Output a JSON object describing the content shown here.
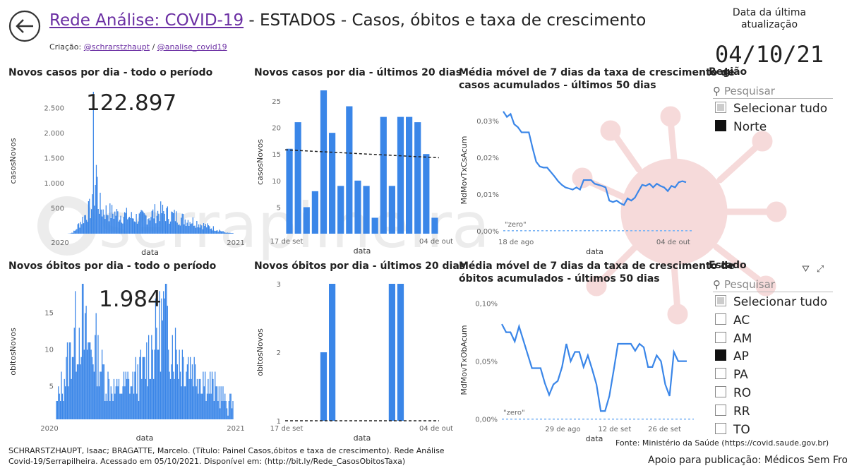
{
  "header": {
    "title_link": "Rede Análise: COVID-19",
    "title_rest": " - ESTADOS - Casos, óbitos e taxa de crescimento",
    "credit_prefix": "Criação: ",
    "credit_link1": "@schrarstzhaupt",
    "credit_sep": " / ",
    "credit_link2": "@analise_covid19",
    "update_label": "Data da última atualização",
    "update_date": "04/10/21"
  },
  "watermark": "serrapilheira",
  "panels": {
    "cases_all": {
      "title": "Novos casos por dia - todo o período",
      "big_number": "122.897"
    },
    "cases_20": {
      "title": "Novos casos por dia - últimos 20 dias"
    },
    "cases_growth": {
      "title_line1": "Média móvel de 7 dias da taxa de crescimento de",
      "title_line2": "casos acumulados - últimos 50 dias"
    },
    "deaths_all": {
      "title": "Novos óbitos por dia - todo o período",
      "big_number": "1.984"
    },
    "deaths_20": {
      "title": "Novos óbitos por dia - últimos 20 dias"
    },
    "deaths_growth": {
      "title_line1": "Média móvel de 7 dias da taxa de crescimento de",
      "title_line2": "óbitos acumulados - últimos 50 dias"
    }
  },
  "chart_data": [
    {
      "id": "cases_all",
      "type": "bar",
      "color": "#3a86e8",
      "xlabel": "data",
      "ylabel": "casosNovos",
      "xticks": [
        "2020",
        "2021"
      ],
      "yticks": [
        500,
        1000,
        1500,
        2000,
        2500
      ],
      "yticks_labels": [
        "500",
        "1.000",
        "1.500",
        "2.000",
        "2.500"
      ],
      "ylim": [
        0,
        2900
      ],
      "envelope": [
        [
          0,
          0
        ],
        [
          4,
          10
        ],
        [
          8,
          60
        ],
        [
          12,
          200
        ],
        [
          16,
          320
        ],
        [
          20,
          450
        ],
        [
          24,
          550
        ],
        [
          26,
          600
        ],
        [
          27,
          2830
        ],
        [
          28,
          900
        ],
        [
          30,
          1450
        ],
        [
          32,
          700
        ],
        [
          36,
          520
        ],
        [
          42,
          480
        ],
        [
          48,
          450
        ],
        [
          54,
          420
        ],
        [
          60,
          400
        ],
        [
          66,
          360
        ],
        [
          72,
          350
        ],
        [
          78,
          360
        ],
        [
          84,
          400
        ],
        [
          90,
          450
        ],
        [
          96,
          480
        ],
        [
          102,
          440
        ],
        [
          108,
          400
        ],
        [
          114,
          360
        ],
        [
          120,
          320
        ],
        [
          126,
          300
        ],
        [
          132,
          260
        ],
        [
          138,
          200
        ],
        [
          144,
          160
        ],
        [
          150,
          120
        ],
        [
          156,
          80
        ],
        [
          160,
          40
        ],
        [
          164,
          20
        ],
        [
          170,
          10
        ]
      ]
    },
    {
      "id": "cases_20",
      "type": "bar",
      "color": "#3a86e8",
      "xlabel": "data",
      "ylabel": "casosNovos",
      "xticks": [
        "17 de set",
        "04 de out"
      ],
      "yticks": [
        5,
        10,
        15,
        20,
        25
      ],
      "ylim": [
        0,
        27
      ],
      "values": [
        16,
        21,
        5,
        8,
        27,
        19,
        9,
        24,
        10,
        9,
        3,
        22,
        9,
        22,
        22,
        21,
        15,
        3
      ],
      "trend": [
        15.8,
        14.3
      ]
    },
    {
      "id": "cases_growth",
      "type": "line",
      "color": "#3a86e8",
      "xlabel": "data",
      "ylabel": "MdMovTxCsAcum",
      "xticks": [
        "18 de ago",
        "04 de out"
      ],
      "yticks": [
        0,
        0.01,
        0.02,
        0.03
      ],
      "yticks_labels": [
        "0,00%",
        "0,01%",
        "0,02%",
        "0,03%"
      ],
      "ylim": [
        -0.001,
        0.034
      ],
      "zero_label": "\"zero\"",
      "values": [
        0.0325,
        0.031,
        0.0318,
        0.029,
        0.0282,
        0.0268,
        0.0268,
        0.0268,
        0.0226,
        0.0188,
        0.0175,
        0.0172,
        0.0172,
        0.016,
        0.0148,
        0.0135,
        0.0125,
        0.0118,
        0.0115,
        0.0112,
        0.0118,
        0.0112,
        0.0138,
        0.0138,
        0.0138,
        0.0128,
        0.0125,
        0.0122,
        0.0118,
        0.0082,
        0.0078,
        0.0082,
        0.0075,
        0.007,
        0.0088,
        0.0082,
        0.009,
        0.0108,
        0.0125,
        0.0122,
        0.0128,
        0.0118,
        0.0128,
        0.0122,
        0.0118,
        0.0108,
        0.0122,
        0.0118,
        0.0132,
        0.0135,
        0.0132
      ]
    },
    {
      "id": "deaths_all",
      "type": "bar",
      "color": "#3a86e8",
      "xlabel": "data",
      "ylabel": "obitosNovos",
      "xticks": [
        "2020",
        "2021"
      ],
      "yticks": [
        5,
        10,
        15
      ],
      "ylim": [
        0.5,
        19
      ],
      "envelope": [
        [
          0,
          3
        ],
        [
          6,
          6
        ],
        [
          12,
          9
        ],
        [
          18,
          13
        ],
        [
          24,
          15
        ],
        [
          26,
          18
        ],
        [
          28,
          13
        ],
        [
          34,
          11
        ],
        [
          40,
          11
        ],
        [
          46,
          8
        ],
        [
          52,
          6
        ],
        [
          58,
          5
        ],
        [
          64,
          5
        ],
        [
          70,
          6
        ],
        [
          76,
          6
        ],
        [
          82,
          7
        ],
        [
          88,
          8
        ],
        [
          92,
          10
        ],
        [
          98,
          12
        ],
        [
          104,
          14
        ],
        [
          108,
          16
        ],
        [
          112,
          15
        ],
        [
          118,
          12
        ],
        [
          124,
          10
        ],
        [
          130,
          9
        ],
        [
          136,
          9
        ],
        [
          142,
          8
        ],
        [
          148,
          7
        ],
        [
          154,
          6
        ],
        [
          160,
          5
        ],
        [
          166,
          4
        ],
        [
          172,
          3
        ],
        [
          178,
          3
        ]
      ]
    },
    {
      "id": "deaths_20",
      "type": "bar",
      "color": "#3a86e8",
      "xlabel": "data",
      "ylabel": "obitosNovos",
      "xticks": [
        "17 de set",
        "04 de out"
      ],
      "yticks": [
        1,
        2,
        3
      ],
      "ylim": [
        1,
        3
      ],
      "values": [
        1,
        1,
        1,
        1,
        2,
        3,
        1,
        1,
        1,
        1,
        1,
        1,
        3,
        3,
        1,
        1,
        1,
        1
      ],
      "trend": [
        1,
        1
      ]
    },
    {
      "id": "deaths_growth",
      "type": "line",
      "color": "#3a86e8",
      "xlabel": "data",
      "ylabel": "MdMovTxObAcum",
      "xticks": [
        "29 de ago",
        "12 de set",
        "26 de set"
      ],
      "yticks": [
        0,
        0.05,
        0.1
      ],
      "yticks_labels": [
        "0,00%",
        "0,05%",
        "0,10%"
      ],
      "ylim": [
        -0.002,
        0.104
      ],
      "zero_label": "\"zero\"",
      "values": [
        0.082,
        0.075,
        0.075,
        0.067,
        0.08,
        0.068,
        0.056,
        0.044,
        0.044,
        0.044,
        0.031,
        0.021,
        0.03,
        0.033,
        0.045,
        0.065,
        0.05,
        0.058,
        0.058,
        0.045,
        0.055,
        0.043,
        0.03,
        0.007,
        0.007,
        0.02,
        0.042,
        0.065,
        0.065,
        0.065,
        0.065,
        0.059,
        0.065,
        0.062,
        0.045,
        0.045,
        0.055,
        0.05,
        0.03,
        0.02,
        0.058,
        0.05,
        0.05,
        0.05
      ]
    }
  ],
  "slicers": {
    "regiao": {
      "title": "Região",
      "search_placeholder": "Pesquisar",
      "options": [
        {
          "label": "Selecionar tudo",
          "state": "partial"
        },
        {
          "label": "Norte",
          "state": "checked"
        }
      ]
    },
    "estado": {
      "title": "Estado",
      "search_placeholder": "Pesquisar",
      "options": [
        {
          "label": "Selecionar tudo",
          "state": "partial"
        },
        {
          "label": "AC",
          "state": "unchecked"
        },
        {
          "label": "AM",
          "state": "unchecked"
        },
        {
          "label": "AP",
          "state": "checked"
        },
        {
          "label": "PA",
          "state": "unchecked"
        },
        {
          "label": "RO",
          "state": "unchecked"
        },
        {
          "label": "RR",
          "state": "unchecked"
        },
        {
          "label": "TO",
          "state": "unchecked"
        }
      ]
    }
  },
  "footer": {
    "citation": "SCHRARSTZHAUPT, Isaac; BRAGATTE, Marcelo. (Título: Painel Casos,óbitos e taxa de crescimento). Rede Análise Covid-19/Serrapilheira. Acessado em 05/10/2021. Disponível em: (http://bit.ly/Rede_CasosObitosTaxa)",
    "source": "Fonte: Ministério da Saúde (https://covid.saude.gov.br)",
    "support": "Apoio para publicação: Médicos Sem Fronteiras"
  }
}
